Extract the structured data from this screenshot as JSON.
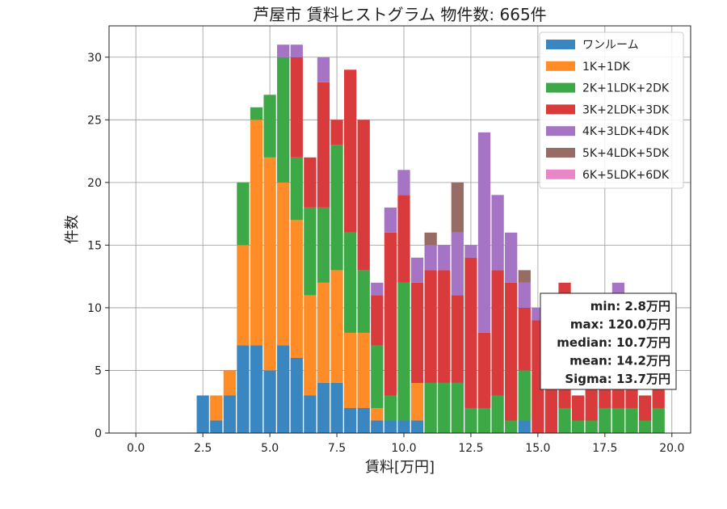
{
  "chart_data": {
    "type": "bar",
    "stacked": true,
    "title": "芦屋市 賃料ヒストグラム  物件数: 665件",
    "xlabel": "賃料[万円]",
    "ylabel": "件数",
    "xlim": [
      -1,
      20.7
    ],
    "ylim": [
      0,
      32.5
    ],
    "grid": true,
    "legend_position": "upper-right",
    "x_ticks": [
      "0.0",
      "2.5",
      "5.0",
      "7.5",
      "10.0",
      "12.5",
      "15.0",
      "17.5",
      "20.0"
    ],
    "x_tick_values": [
      0,
      2.5,
      5,
      7.5,
      10,
      12.5,
      15,
      17.5,
      20
    ],
    "y_ticks": [
      "0",
      "5",
      "10",
      "15",
      "20",
      "25",
      "30"
    ],
    "y_tick_values": [
      0,
      5,
      10,
      15,
      20,
      25,
      30
    ],
    "bin_width": 0.5,
    "x": [
      2.5,
      3.0,
      3.5,
      4.0,
      4.5,
      5.0,
      5.5,
      6.0,
      6.5,
      7.0,
      7.5,
      8.0,
      8.5,
      9.0,
      9.5,
      10.0,
      10.5,
      11.0,
      11.5,
      12.0,
      12.5,
      13.0,
      13.5,
      14.0,
      14.5,
      15.0,
      15.5,
      16.0,
      16.5,
      17.0,
      17.5,
      18.0,
      18.5,
      19.0,
      19.5
    ],
    "series": [
      {
        "name": "ワンルーム",
        "color": "#3a86c0",
        "values": [
          3,
          1,
          3,
          7,
          7,
          5,
          7,
          6,
          3,
          4,
          4,
          2,
          2,
          1,
          1,
          1,
          1,
          0,
          0,
          0,
          0,
          0,
          0,
          0,
          1,
          0,
          0,
          0,
          0,
          0,
          0,
          0,
          0,
          0,
          0
        ]
      },
      {
        "name": "1K+1DK",
        "color": "#ff8c26",
        "values": [
          0,
          2,
          2,
          8,
          18,
          17,
          13,
          11,
          8,
          8,
          9,
          6,
          6,
          1,
          0,
          0,
          3,
          0,
          0,
          0,
          0,
          0,
          0,
          0,
          0,
          0,
          0,
          0,
          0,
          0,
          0,
          0,
          0,
          0,
          0
        ]
      },
      {
        "name": "2K+1LDK+2DK",
        "color": "#3ca846",
        "values": [
          0,
          0,
          0,
          5,
          1,
          5,
          10,
          5,
          7,
          6,
          10,
          8,
          5,
          5,
          2,
          11,
          0,
          4,
          4,
          4,
          2,
          2,
          3,
          1,
          4,
          0,
          0,
          2,
          1,
          1,
          2,
          2,
          2,
          1,
          2
        ]
      },
      {
        "name": "3K+2LDK+3DK",
        "color": "#d93a3c",
        "values": [
          0,
          0,
          0,
          0,
          0,
          0,
          0,
          8,
          4,
          10,
          2,
          13,
          12,
          4,
          13,
          7,
          8,
          9,
          9,
          7,
          12,
          6,
          10,
          11,
          5,
          9,
          4,
          10,
          2,
          6,
          8,
          6,
          4,
          2,
          2
        ]
      },
      {
        "name": "4K+3LDK+4DK",
        "color": "#a574c4",
        "values": [
          0,
          0,
          0,
          0,
          0,
          0,
          1,
          1,
          0,
          2,
          0,
          0,
          0,
          1,
          2,
          2,
          2,
          2,
          2,
          5,
          1,
          16,
          6,
          4,
          2,
          1,
          0,
          0,
          0,
          0,
          0,
          4,
          0,
          0,
          0
        ]
      },
      {
        "name": "5K+4LDK+5DK",
        "color": "#966c64",
        "values": [
          0,
          0,
          0,
          0,
          0,
          0,
          0,
          0,
          0,
          0,
          0,
          0,
          0,
          0,
          0,
          0,
          0,
          1,
          0,
          4,
          0,
          0,
          0,
          0,
          1,
          0,
          0,
          0,
          0,
          0,
          0,
          0,
          0,
          0,
          0
        ]
      },
      {
        "name": "6K+5LDK+6DK",
        "color": "#e986c7",
        "values": [
          0,
          0,
          0,
          0,
          0,
          0,
          0,
          0,
          0,
          0,
          0,
          0,
          0,
          0,
          0,
          0,
          0,
          0,
          0,
          0,
          0,
          0,
          0,
          0,
          0,
          0,
          0,
          0,
          0,
          0,
          0,
          0,
          0,
          0,
          0
        ]
      }
    ],
    "stats_box": [
      "min: 2.8万円",
      "max: 120.0万円",
      "median: 10.7万円",
      "mean: 14.2万円",
      "Sigma: 13.7万円"
    ]
  }
}
